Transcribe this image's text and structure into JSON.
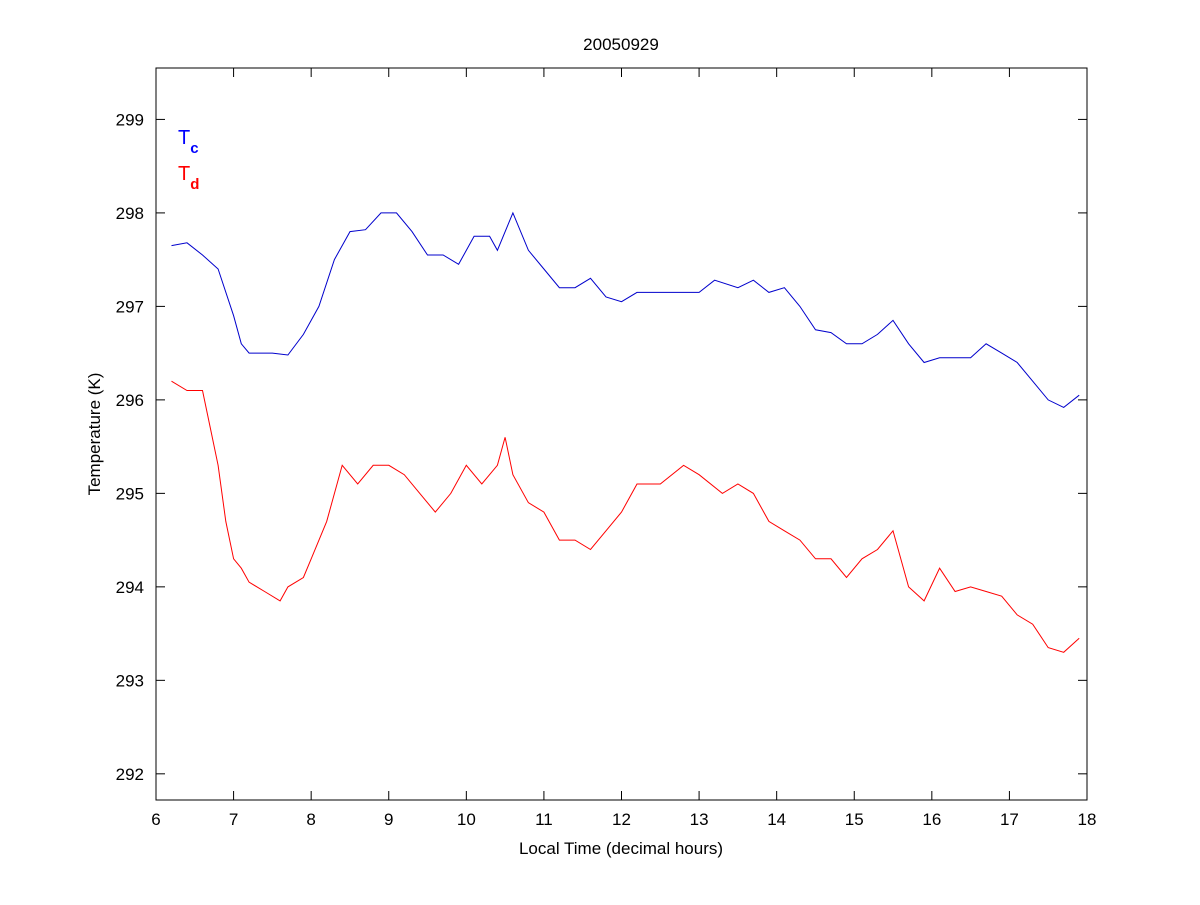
{
  "chart_data": {
    "type": "line",
    "title": "20050929",
    "xlabel": "Local Time (decimal hours)",
    "ylabel": "Temperature (K)",
    "xlim": [
      6,
      18
    ],
    "ylim": [
      291.72,
      299.55
    ],
    "xticks": [
      6,
      7,
      8,
      9,
      10,
      11,
      12,
      13,
      14,
      15,
      16,
      17,
      18
    ],
    "yticks": [
      292,
      293,
      294,
      295,
      296,
      297,
      298,
      299
    ],
    "grid": false,
    "legend": {
      "placement": "top-left",
      "entries": [
        {
          "main": "T",
          "sub": "c",
          "color": "#0000ff"
        },
        {
          "main": "T",
          "sub": "d",
          "color": "#ff0000"
        }
      ]
    },
    "series": [
      {
        "name": "Tc",
        "color": "#0000cc",
        "x": [
          6.2,
          6.4,
          6.6,
          6.8,
          7.0,
          7.1,
          7.2,
          7.5,
          7.7,
          7.9,
          8.1,
          8.3,
          8.5,
          8.7,
          8.9,
          9.1,
          9.3,
          9.5,
          9.7,
          9.9,
          10.1,
          10.3,
          10.4,
          10.6,
          10.8,
          11.0,
          11.2,
          11.4,
          11.6,
          11.8,
          12.0,
          12.2,
          12.5,
          12.8,
          13.0,
          13.2,
          13.5,
          13.7,
          13.9,
          14.1,
          14.3,
          14.5,
          14.7,
          14.9,
          15.1,
          15.3,
          15.5,
          15.7,
          15.9,
          16.1,
          16.3,
          16.5,
          16.7,
          16.9,
          17.1,
          17.3,
          17.5,
          17.7,
          17.9
        ],
        "y": [
          297.65,
          297.68,
          297.55,
          297.4,
          296.9,
          296.6,
          296.5,
          296.5,
          296.48,
          296.7,
          297.0,
          297.5,
          297.8,
          297.82,
          298.0,
          298.0,
          297.8,
          297.55,
          297.55,
          297.45,
          297.75,
          297.75,
          297.6,
          298.0,
          297.6,
          297.4,
          297.2,
          297.2,
          297.3,
          297.1,
          297.05,
          297.15,
          297.15,
          297.15,
          297.15,
          297.28,
          297.2,
          297.28,
          297.15,
          297.2,
          297.0,
          296.75,
          296.72,
          296.6,
          296.6,
          296.7,
          296.85,
          296.6,
          296.4,
          296.45,
          296.45,
          296.45,
          296.6,
          296.5,
          296.4,
          296.2,
          296.0,
          295.92,
          296.05
        ]
      },
      {
        "name": "Td",
        "color": "#ff0000",
        "x": [
          6.2,
          6.4,
          6.6,
          6.7,
          6.8,
          6.9,
          7.0,
          7.1,
          7.2,
          7.4,
          7.6,
          7.7,
          7.9,
          8.0,
          8.2,
          8.4,
          8.6,
          8.8,
          9.0,
          9.2,
          9.4,
          9.6,
          9.8,
          10.0,
          10.2,
          10.4,
          10.5,
          10.6,
          10.8,
          11.0,
          11.2,
          11.4,
          11.6,
          11.8,
          12.0,
          12.2,
          12.5,
          12.8,
          13.0,
          13.3,
          13.5,
          13.7,
          13.9,
          14.1,
          14.3,
          14.5,
          14.7,
          14.9,
          15.1,
          15.3,
          15.5,
          15.7,
          15.9,
          16.1,
          16.3,
          16.5,
          16.7,
          16.9,
          17.1,
          17.3,
          17.5,
          17.7,
          17.9
        ],
        "y": [
          296.2,
          296.1,
          296.1,
          295.7,
          295.3,
          294.7,
          294.3,
          294.2,
          294.05,
          293.95,
          293.85,
          294.0,
          294.1,
          294.3,
          294.7,
          295.3,
          295.1,
          295.3,
          295.3,
          295.2,
          295.0,
          294.8,
          295.0,
          295.3,
          295.1,
          295.3,
          295.6,
          295.2,
          294.9,
          294.8,
          294.5,
          294.5,
          294.4,
          294.6,
          294.8,
          295.1,
          295.1,
          295.3,
          295.2,
          295.0,
          295.1,
          295.0,
          294.7,
          294.6,
          294.5,
          294.3,
          294.3,
          294.1,
          294.3,
          294.4,
          294.6,
          294.0,
          293.85,
          294.2,
          293.95,
          294.0,
          293.95,
          293.9,
          293.7,
          293.6,
          293.35,
          293.3,
          293.45
        ]
      }
    ]
  }
}
